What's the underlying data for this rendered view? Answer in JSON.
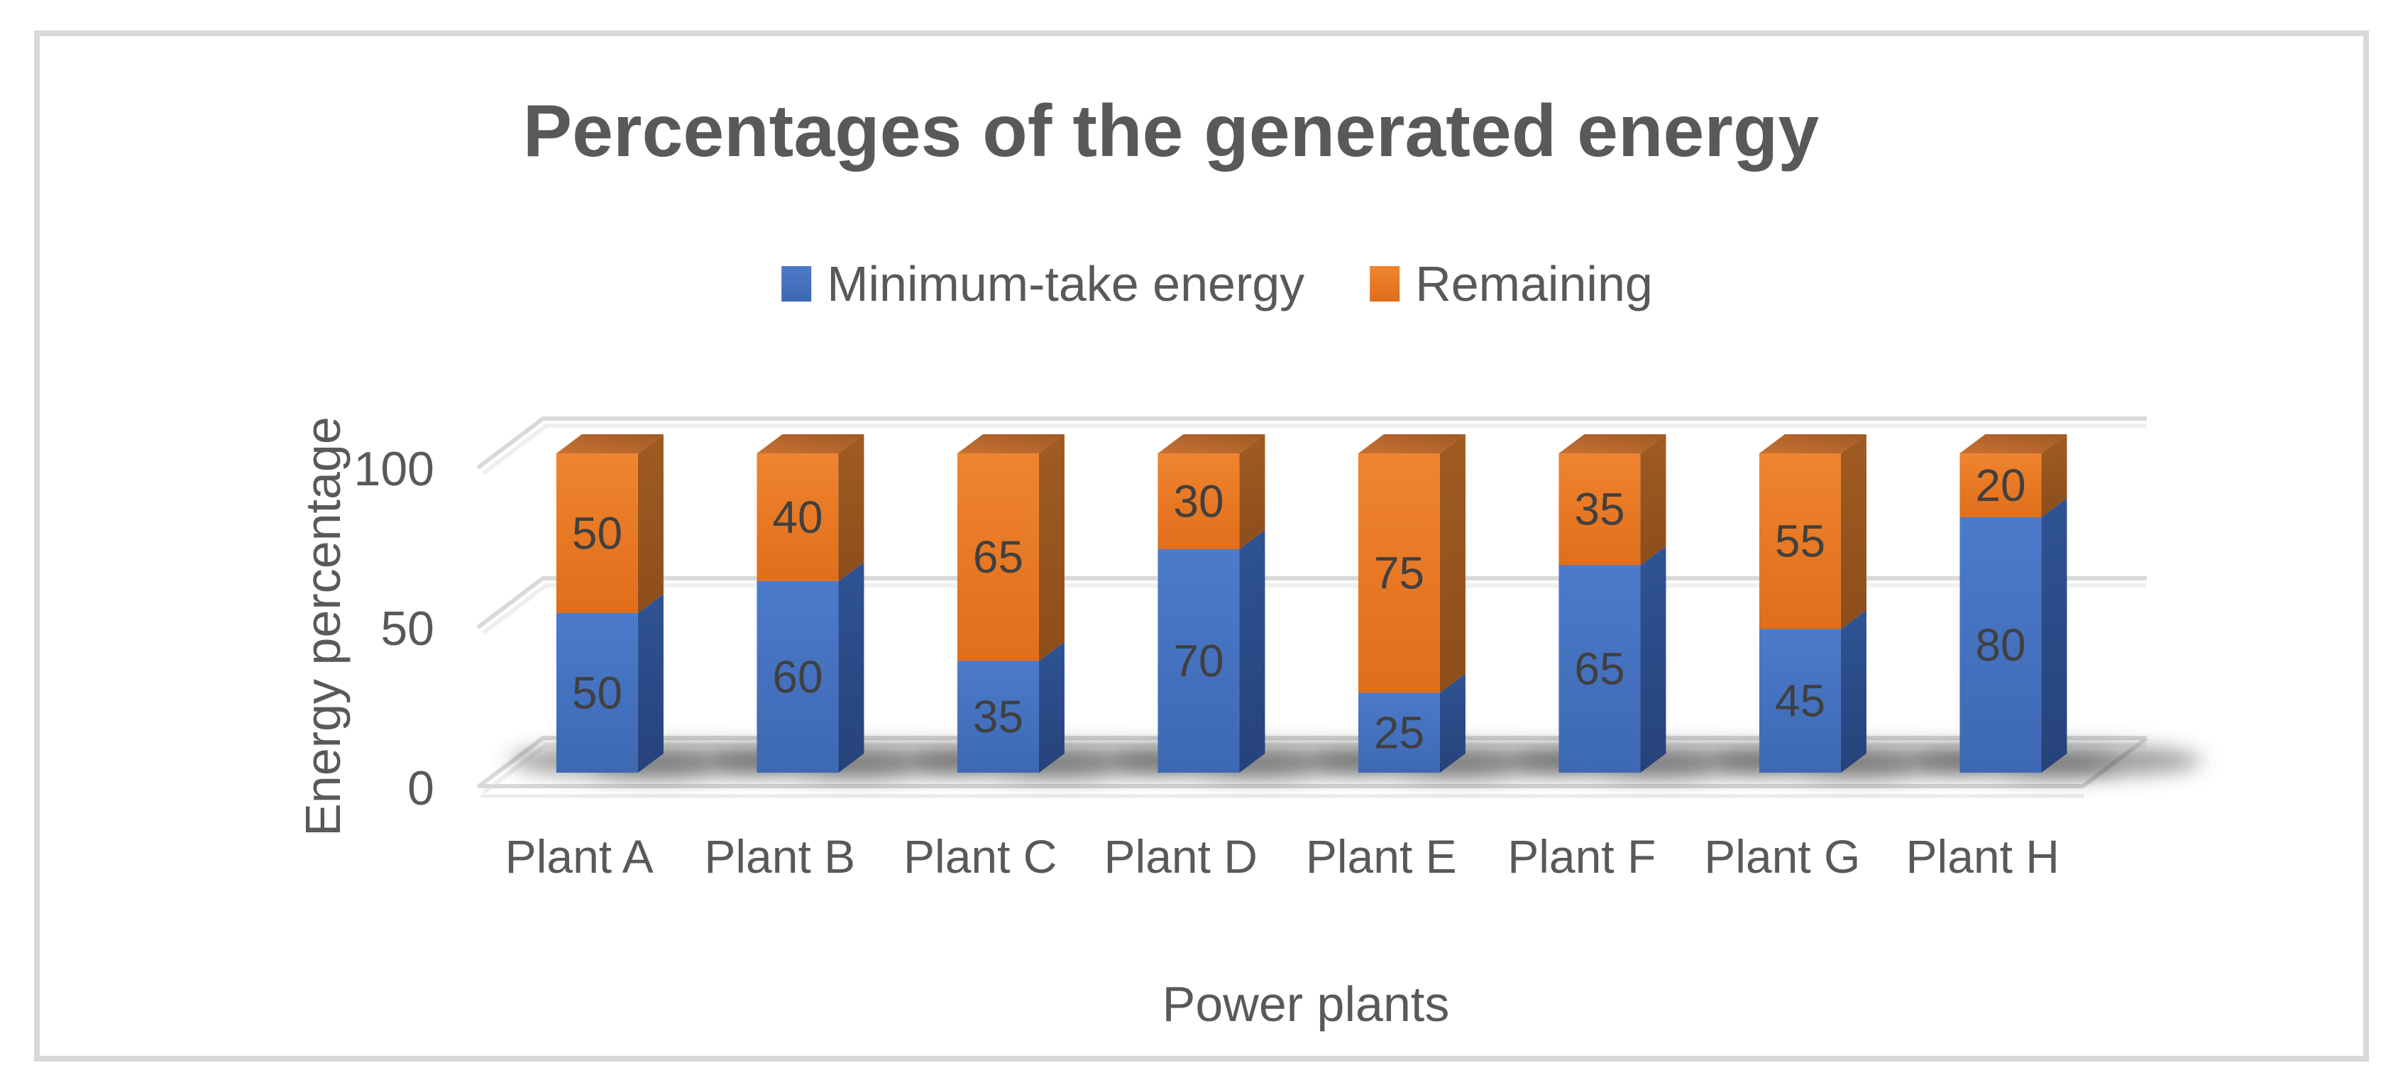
{
  "page": {
    "background": "#FFFFFF",
    "frame_border_color": "#D9D9D9"
  },
  "chart_data": {
    "type": "bar",
    "subtype": "3d-stacked-column",
    "title": "Percentages of the generated energy",
    "xlabel": "Power plants",
    "ylabel": "Energy percentage",
    "categories": [
      "Plant A",
      "Plant B",
      "Plant C",
      "Plant D",
      "Plant E",
      "Plant F",
      "Plant G",
      "Plant H"
    ],
    "series": [
      {
        "name": "Minimum-take energy",
        "color": "#4472C4",
        "values": [
          50,
          60,
          35,
          70,
          25,
          65,
          45,
          80
        ]
      },
      {
        "name": "Remaining",
        "color": "#ED7D31",
        "values": [
          50,
          40,
          65,
          30,
          75,
          35,
          55,
          20
        ]
      }
    ],
    "y_ticks": [
      0,
      50,
      100
    ],
    "ylim": [
      0,
      100
    ],
    "grid": true,
    "legend_position": "top",
    "data_labels": true
  },
  "styles": {
    "text_color": "#595959",
    "data_label_color": "#404040",
    "gridline_color": "#D9D9D9",
    "blue_front_top": "#4C7BCB",
    "blue_front_bottom": "#3D68B2",
    "blue_side_top": "#2F5394",
    "blue_side_bottom": "#26427A",
    "orange_front_top": "#F0842F",
    "orange_front_bottom": "#E06E1A",
    "orange_side_top": "#A05B21",
    "orange_side_bottom": "#8C4E1C",
    "orange_top_near": "#C87134",
    "orange_top_far": "#9F5A25"
  }
}
